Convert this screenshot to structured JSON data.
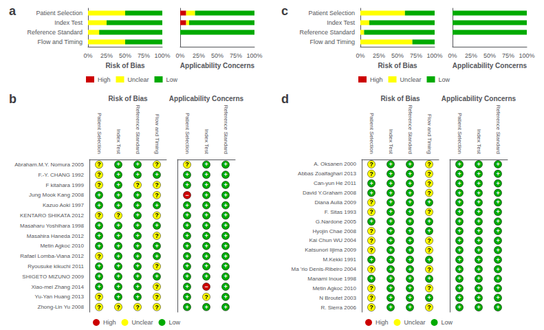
{
  "chart_data": [
    {
      "type": "bar",
      "title": "a",
      "xlabel": "Risk of Bias",
      "orientation": "horizontal",
      "stacked": true,
      "grid": false,
      "legend": "bottom",
      "categories": [
        "Patient Selection",
        "Index Test",
        "Reference Standard",
        "Flow and Timing"
      ],
      "xlim": [
        0,
        100
      ],
      "xticks": [
        {
          "value": 0,
          "label": "0%"
        },
        {
          "value": 25,
          "label": "25%"
        },
        {
          "value": 50,
          "label": "50%"
        },
        {
          "value": 75,
          "label": "75%"
        },
        {
          "value": 100,
          "label": "100%"
        }
      ],
      "series": [
        {
          "name": "High",
          "color": "#cc0000",
          "values": [
            0,
            0,
            0,
            0
          ]
        },
        {
          "name": "Unclear",
          "color": "#ffff00",
          "values": [
            50,
            25,
            15,
            50
          ]
        },
        {
          "name": "Low",
          "color": "#00aa00",
          "values": [
            50,
            75,
            85,
            50
          ]
        }
      ]
    },
    {
      "type": "bar",
      "xlabel": "Applicability Concerns",
      "orientation": "horizontal",
      "stacked": true,
      "grid": false,
      "tick_labels": "x",
      "categories": [
        "Patient Selection",
        "Index Test",
        "Reference Standard",
        "Flow and Timing"
      ],
      "xlim": [
        0,
        100
      ],
      "xticks": [
        {
          "value": 0,
          "label": "0%"
        },
        {
          "value": 25,
          "label": "25%"
        },
        {
          "value": 50,
          "label": "50%"
        },
        {
          "value": 75,
          "label": "75%"
        },
        {
          "value": 100,
          "label": "100%"
        }
      ],
      "series": [
        {
          "name": "High",
          "color": "#cc0000",
          "values": [
            8,
            8,
            0,
            null
          ]
        },
        {
          "name": "Unclear",
          "color": "#ffff00",
          "values": [
            12,
            4,
            0,
            null
          ]
        },
        {
          "name": "Low",
          "color": "#00aa00",
          "values": [
            80,
            88,
            100,
            null
          ]
        }
      ]
    },
    {
      "type": "bar",
      "title": "c",
      "xlabel": "Risk of Bias",
      "orientation": "horizontal",
      "stacked": true,
      "grid": false,
      "legend": "bottom",
      "categories": [
        "Patient Selection",
        "Index Test",
        "Reference Standard",
        "Flow and Timing"
      ],
      "xlim": [
        0,
        100
      ],
      "xticks": [
        {
          "value": 0,
          "label": "0%"
        },
        {
          "value": 25,
          "label": "25%"
        },
        {
          "value": 50,
          "label": "50%"
        },
        {
          "value": 75,
          "label": "75%"
        },
        {
          "value": 100,
          "label": "100%"
        }
      ],
      "series": [
        {
          "name": "High",
          "color": "#cc0000",
          "values": [
            0,
            0,
            0,
            0
          ]
        },
        {
          "name": "Unclear",
          "color": "#ffff00",
          "values": [
            60,
            12,
            5,
            70
          ]
        },
        {
          "name": "Low",
          "color": "#00aa00",
          "values": [
            40,
            88,
            95,
            30
          ]
        }
      ]
    },
    {
      "type": "bar",
      "xlabel": "Applicability Concerns",
      "orientation": "horizontal",
      "stacked": true,
      "grid": false,
      "tick_labels": "x",
      "categories": [
        "Patient Selection",
        "Index Test",
        "Reference Standard",
        "Flow and Timing"
      ],
      "xlim": [
        0,
        100
      ],
      "xticks": [
        {
          "value": 0,
          "label": "0%"
        },
        {
          "value": 25,
          "label": "25%"
        },
        {
          "value": 50,
          "label": "50%"
        },
        {
          "value": 75,
          "label": "75%"
        },
        {
          "value": 100,
          "label": "100%"
        }
      ],
      "series": [
        {
          "name": "High",
          "color": "#cc0000",
          "values": [
            0,
            0,
            0,
            null
          ]
        },
        {
          "name": "Unclear",
          "color": "#ffff00",
          "values": [
            0,
            0,
            0,
            null
          ]
        },
        {
          "name": "Low",
          "color": "#00aa00",
          "values": [
            100,
            100,
            100,
            null
          ]
        }
      ]
    },
    {
      "type": "scatter",
      "title": "b",
      "xlabel": "Risk of Bias",
      "marker": "circle",
      "grid": false,
      "legend": "bottom",
      "categories": [
        "Patient Selection",
        "Index Test",
        "Reference Standard",
        "Flow and Timing"
      ],
      "rows": [
        "Abraham.M.Y. Nomura 2005",
        "F.-Y. CHANG 1992",
        "F kitahara 1999",
        "Jung Mook Kang 2008",
        "Kazuo Aoki 1997",
        "KENTARO SHIKATA 2012",
        "Masaharu Yoshihara 1998",
        "Masahira Haneda 2012",
        "Metin Agkoc 2010",
        "Rafael Lomba-Viana 2012",
        "Ryousuke kikuchi 2011",
        "SHIGETO MIZUNO 2009",
        "Xiao-mei Zhang 2014",
        "Yu-Yan Huang 2013",
        "Zhong-Lin Yu 2008"
      ],
      "values": [
        [
          "?",
          "+",
          "+",
          "?"
        ],
        [
          "?",
          "+",
          "+",
          "+"
        ],
        [
          "?",
          "+",
          "?",
          "?"
        ],
        [
          "+",
          "+",
          "+",
          "?"
        ],
        [
          "+",
          "+",
          "+",
          "+"
        ],
        [
          "?",
          "?",
          "+",
          "?"
        ],
        [
          "+",
          "+",
          "+",
          "+"
        ],
        [
          "+",
          "+",
          "+",
          "?"
        ],
        [
          "+",
          "+",
          "+",
          "+"
        ],
        [
          "?",
          "+",
          "+",
          "+"
        ],
        [
          "+",
          "+",
          "+",
          "?"
        ],
        [
          "+",
          "+",
          "+",
          "+"
        ],
        [
          "+",
          "+",
          "+",
          "?"
        ],
        [
          "?",
          "+",
          "+",
          "?"
        ],
        [
          "?",
          "?",
          "?",
          "?"
        ]
      ],
      "series": [
        {
          "name": "High",
          "color": "#cc0000",
          "label": "−"
        },
        {
          "name": "Unclear",
          "color": "#ffff00",
          "label": "?"
        },
        {
          "name": "Low",
          "color": "#00aa00",
          "label": "+"
        }
      ]
    },
    {
      "type": "scatter",
      "xlabel": "Applicability Concerns",
      "marker": "circle",
      "grid": false,
      "tick_labels": "x",
      "categories": [
        "Patient Selection",
        "Index Test",
        "Reference Standard"
      ],
      "rows": [
        "Abraham.M.Y. Nomura 2005",
        "F.-Y. CHANG 1992",
        "F kitahara 1999",
        "Jung Mook Kang 2008",
        "Kazuo Aoki 1997",
        "KENTARO SHIKATA 2012",
        "Masaharu Yoshihara 1998",
        "Masahira Haneda 2012",
        "Metin Agkoc 2010",
        "Rafael Lomba-Viana 2012",
        "Ryousuke kikuchi 2011",
        "SHIGETO MIZUNO 2009",
        "Xiao-mei Zhang 2014",
        "Yu-Yan Huang 2013",
        "Zhong-Lin Yu 2008"
      ],
      "values": [
        [
          "?",
          "+",
          "+"
        ],
        [
          "+",
          "+",
          "+"
        ],
        [
          "+",
          "+",
          "+"
        ],
        [
          "−",
          "+",
          "+"
        ],
        [
          "+",
          "+",
          "+"
        ],
        [
          "+",
          "+",
          "+"
        ],
        [
          "+",
          "+",
          "+"
        ],
        [
          "+",
          "+",
          "+"
        ],
        [
          "+",
          "+",
          "+"
        ],
        [
          "+",
          "+",
          "+"
        ],
        [
          "+",
          "+",
          "+"
        ],
        [
          "+",
          "+",
          "+"
        ],
        [
          "+",
          "−",
          "+"
        ],
        [
          "+",
          "?",
          "+"
        ],
        [
          "+",
          "+",
          "+"
        ]
      ],
      "series": [
        {
          "name": "High",
          "color": "#cc0000",
          "label": "−"
        },
        {
          "name": "Unclear",
          "color": "#ffff00",
          "label": "?"
        },
        {
          "name": "Low",
          "color": "#00aa00",
          "label": "+"
        }
      ]
    },
    {
      "type": "scatter",
      "title": "d",
      "xlabel": "Risk of Bias",
      "marker": "circle",
      "grid": false,
      "legend": "bottom",
      "categories": [
        "Patient Selection",
        "Index Test",
        "Reference Standard",
        "Flow and Timing"
      ],
      "rows": [
        "A. Oksanen 2000",
        "Abbas Zoalfaghari 2013",
        "Can-yun He 2011",
        "David Y.Graham 2008",
        "Diana Aulia 2009",
        "F. Sitas 1993",
        "G.Nardone 2005",
        "Hyojin Chae 2008",
        "Kai Chun WU 2004",
        "Katsunori Iijima 2009",
        "M.Kekki 1991",
        "Ma 'rio Denis-Ribeiro 2004",
        "Manami Inoue 1998",
        "Metin Agkoc 2010",
        "N Broutet 2003",
        "R. Sierra 2006"
      ],
      "values": [
        [
          "?",
          "+",
          "+",
          "?"
        ],
        [
          "?",
          "+",
          "+",
          "?"
        ],
        [
          "+",
          "+",
          "+",
          "?"
        ],
        [
          "+",
          "+",
          "+",
          "?"
        ],
        [
          "?",
          "+",
          "+",
          "+"
        ],
        [
          "?",
          "+",
          "+",
          "?"
        ],
        [
          "+",
          "+",
          "+",
          "+"
        ],
        [
          "?",
          "+",
          "+",
          "+"
        ],
        [
          "?",
          "+",
          "+",
          "?"
        ],
        [
          "?",
          "+",
          "+",
          "?"
        ],
        [
          "+",
          "+",
          "+",
          "+"
        ],
        [
          "?",
          "+",
          "+",
          "?"
        ],
        [
          "+",
          "+",
          "+",
          "+"
        ],
        [
          "?",
          "+",
          "+",
          "?"
        ],
        [
          "?",
          "+",
          "+",
          "+"
        ],
        [
          "?",
          "+",
          "+",
          "?"
        ]
      ],
      "series": [
        {
          "name": "High",
          "color": "#cc0000",
          "label": "−"
        },
        {
          "name": "Unclear",
          "color": "#ffff00",
          "label": "?"
        },
        {
          "name": "Low",
          "color": "#00aa00",
          "label": "+"
        }
      ]
    },
    {
      "type": "scatter",
      "xlabel": "Applicability Concerns",
      "marker": "circle",
      "grid": false,
      "tick_labels": "x",
      "categories": [
        "Patient Selection",
        "Index Test",
        "Reference Standard"
      ],
      "rows": [
        "A. Oksanen 2000",
        "Abbas Zoalfaghari 2013",
        "Can-yun He 2011",
        "David Y.Graham 2008",
        "Diana Aulia 2009",
        "F. Sitas 1993",
        "G.Nardone 2005",
        "Hyojin Chae 2008",
        "Kai Chun WU 2004",
        "Katsunori Iijima 2009",
        "M.Kekki 1991",
        "Ma 'rio Denis-Ribeiro 2004",
        "Manami Inoue 1998",
        "Metin Agkoc 2010",
        "N Broutet 2003",
        "R. Sierra 2006"
      ],
      "values": [
        [
          "+",
          "+",
          "+"
        ],
        [
          "+",
          "+",
          "+"
        ],
        [
          "+",
          "+",
          "+"
        ],
        [
          "+",
          "+",
          "+"
        ],
        [
          "+",
          "+",
          "+"
        ],
        [
          "+",
          "+",
          "+"
        ],
        [
          "+",
          "+",
          "+"
        ],
        [
          "+",
          "+",
          "+"
        ],
        [
          "+",
          "+",
          "+"
        ],
        [
          "+",
          "+",
          "+"
        ],
        [
          "+",
          "+",
          "+"
        ],
        [
          "+",
          "+",
          "+"
        ],
        [
          "+",
          "+",
          "+"
        ],
        [
          "+",
          "+",
          "+"
        ],
        [
          "+",
          "+",
          "+"
        ],
        [
          "+",
          "+",
          "+"
        ]
      ],
      "series": [
        {
          "name": "High",
          "color": "#cc0000",
          "label": "−"
        },
        {
          "name": "Unclear",
          "color": "#ffff00",
          "label": "?"
        },
        {
          "name": "Low",
          "color": "#00aa00",
          "label": "+"
        }
      ]
    }
  ]
}
